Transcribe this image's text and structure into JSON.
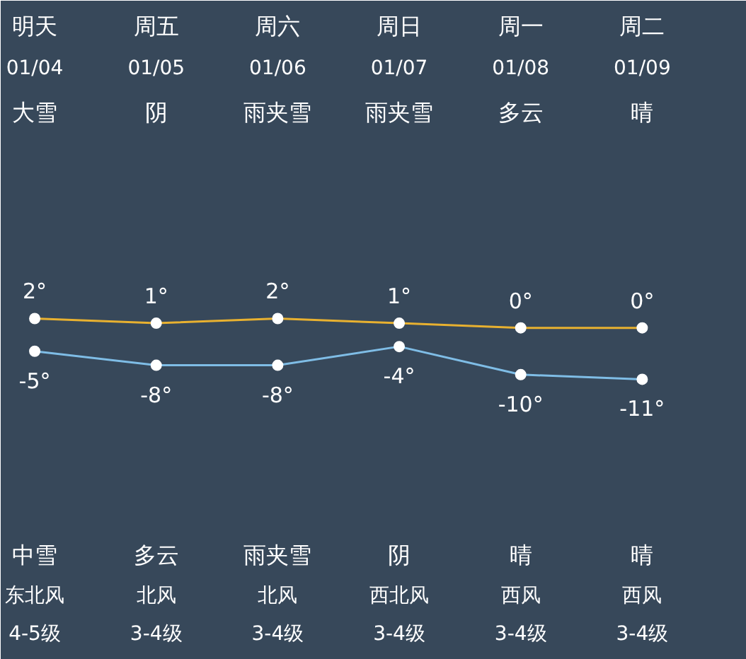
{
  "chart_data": {
    "type": "line",
    "categories": [
      "明天",
      "周五",
      "周六",
      "周日",
      "周一",
      "周二"
    ],
    "series": [
      {
        "color": "#e8b130",
        "values": [
          2,
          1,
          2,
          1,
          0,
          0
        ],
        "value_labels": [
          "2°",
          "1°",
          "2°",
          "1°",
          "0°",
          "0°"
        ]
      },
      {
        "color": "#7fbde6",
        "values": [
          -5,
          -8,
          -8,
          -4,
          -10,
          -11
        ],
        "value_labels": [
          "-5°",
          "-8°",
          "-8°",
          "-4°",
          "-10°",
          "-11°"
        ]
      }
    ],
    "ylim": [
      -71,
      70
    ],
    "marker": "circle",
    "line_style": "solid",
    "grid": false,
    "tick_labels": false,
    "annotations": [
      "01/04",
      "01/05",
      "01/06",
      "01/07",
      "01/08",
      "01/09",
      "大雪",
      "阴",
      "雨夹雪",
      "雨夹雪",
      "多云",
      "晴",
      "中雪",
      "多云",
      "雨夹雪",
      "阴",
      "晴",
      "晴",
      "东北风",
      "北风",
      "北风",
      "西北风",
      "西风",
      "西风",
      "4-5级",
      "3-4级",
      "3-4级",
      "3-4级",
      "3-4级",
      "3-4级"
    ]
  }
}
